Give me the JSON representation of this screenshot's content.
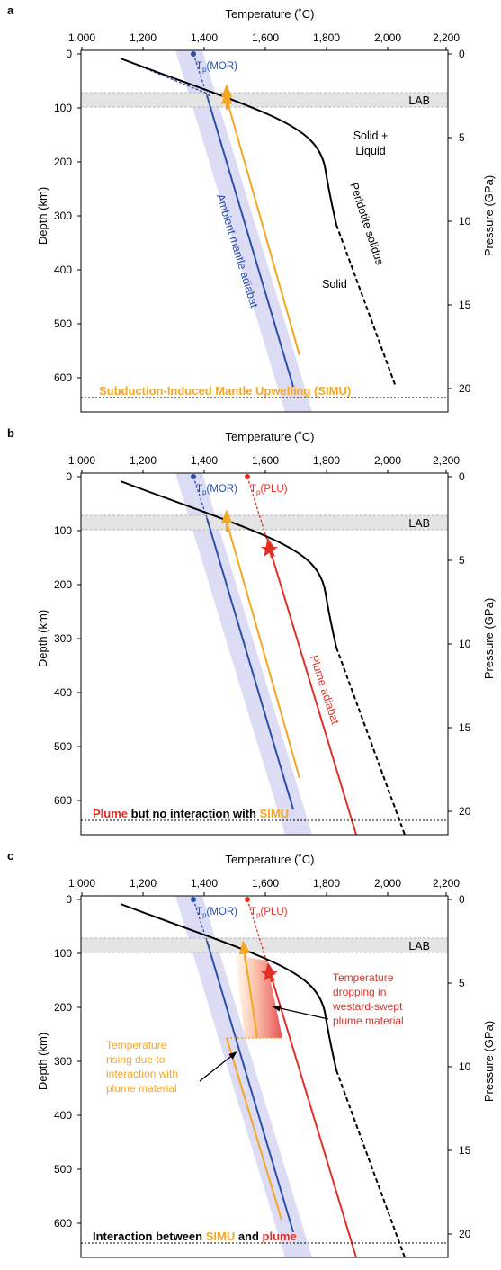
{
  "x_axis": {
    "title": "Temperature (˚C)",
    "ticks": [
      "1,000",
      "1,200",
      "1,400",
      "1,600",
      "1,800",
      "2,000",
      "2,200"
    ]
  },
  "y_left": {
    "title": "Depth (km)",
    "ticks": [
      "0",
      "100",
      "200",
      "300",
      "400",
      "500",
      "600"
    ]
  },
  "y_right": {
    "title": "Pressure (GPa)",
    "ticks": [
      "0",
      "5",
      "10",
      "15",
      "20"
    ]
  },
  "colors": {
    "mor": "#2b4fa8",
    "plume": "#e03128",
    "simu": "#f5a623",
    "band": "#dcdcf4",
    "lab_band": "#e4e4e4"
  },
  "panel_a": {
    "letter": "a",
    "lab": "LAB",
    "tp_mor": "MOR",
    "solid_liquid_1": "Solid +",
    "solid_liquid_2": "Liquid",
    "solid": "Solid",
    "solidus": "Peridotite solidus",
    "ambient": "Ambient mantle adiabat",
    "caption": "Subduction-Induced Mantle Upwelling (SIMU)"
  },
  "panel_b": {
    "letter": "b",
    "lab": "LAB",
    "tp_mor": "MOR",
    "tp_plu": "PLU",
    "plume_adiabat": "Plume adiabat",
    "caption_plume": "Plume",
    "caption_mid": " but no interaction with ",
    "caption_simu": "SIMU"
  },
  "panel_c": {
    "letter": "c",
    "lab": "LAB",
    "tp_mor": "MOR",
    "tp_plu": "PLU",
    "rise_1": "Temperature",
    "rise_2": "rising due to",
    "rise_3": "interaction with",
    "rise_4": "plume material",
    "drop_1": "Temperature",
    "drop_2": "dropping in",
    "drop_3": "westard-swept",
    "drop_4": "plume material",
    "caption_a": "Interaction between ",
    "caption_simu": "SIMU",
    "caption_mid": " and ",
    "caption_plume": "plume"
  }
}
